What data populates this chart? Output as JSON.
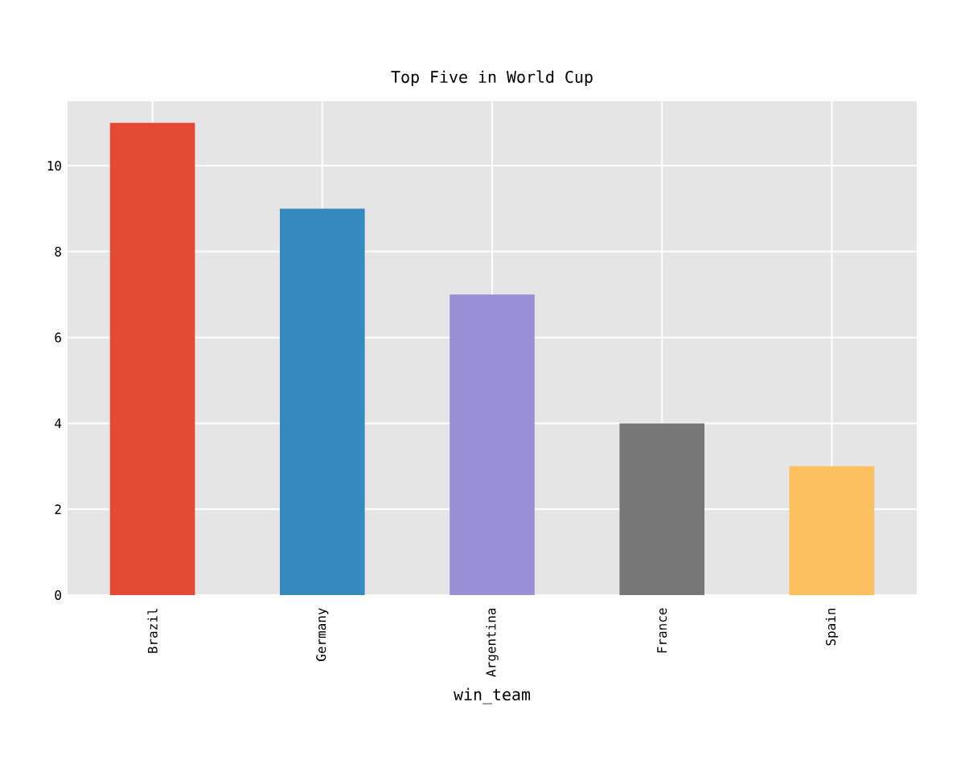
{
  "chart_data": {
    "type": "bar",
    "title": "Top Five in World Cup",
    "xlabel": "win_team",
    "categories": [
      "Brazil",
      "Germany",
      "Argentina",
      "France",
      "Spain"
    ],
    "values": [
      11,
      9,
      7,
      4,
      3
    ],
    "colors": [
      "#e24a33",
      "#348abd",
      "#988ed5",
      "#777777",
      "#fbc15e"
    ],
    "ylim": [
      0,
      11.5
    ],
    "yticks": [
      0,
      2,
      4,
      6,
      8,
      10
    ],
    "grid": true
  }
}
